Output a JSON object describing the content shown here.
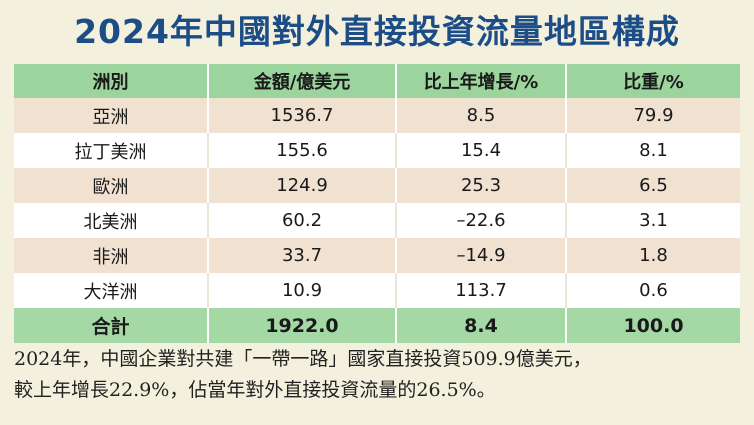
{
  "title": "2024年中國對外直接投資流量地區構成",
  "table": {
    "headers": [
      "洲別",
      "金額/億美元",
      "比上年增長/%",
      "比重/%"
    ],
    "rows": [
      [
        "亞洲",
        "1536.7",
        "8.5",
        "79.9"
      ],
      [
        "拉丁美洲",
        "155.6",
        "15.4",
        "8.1"
      ],
      [
        "歐洲",
        "124.9",
        "25.3",
        "6.5"
      ],
      [
        "北美洲",
        "60.2",
        "–22.6",
        "3.1"
      ],
      [
        "非洲",
        "33.7",
        "–14.9",
        "1.8"
      ],
      [
        "大洋洲",
        "10.9",
        "113.7",
        "0.6"
      ]
    ],
    "total": [
      "合計",
      "1922.0",
      "8.4",
      "100.0"
    ]
  },
  "note": {
    "line1": "2024年，中國企業對共建「一帶一路」國家直接投資509.9億美元，",
    "line2": "較上年增長22.9%，佔當年對外直接投資流量的26.5%。"
  },
  "colors": {
    "title": "#1c4d86",
    "header_bg": "#9bd49c",
    "row_tan": "#f0e1d0",
    "row_white": "#ffffff",
    "total_bg": "#a4d9a5",
    "panel_bg": "#f3f1de"
  }
}
